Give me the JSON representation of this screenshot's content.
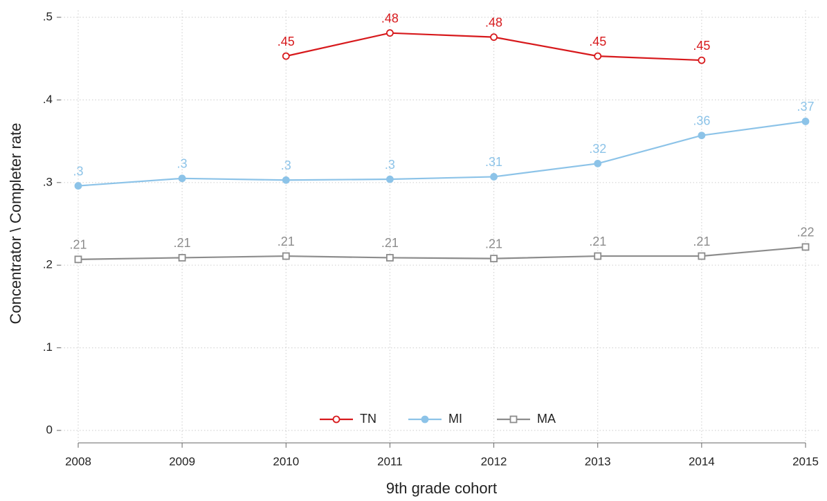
{
  "chart_data": {
    "type": "line",
    "xlabel": "9th grade cohort",
    "ylabel": "Concentrator \\ Completer rate",
    "x": [
      2008,
      2009,
      2010,
      2011,
      2012,
      2013,
      2014,
      2015
    ],
    "xlim": [
      2008,
      2015
    ],
    "xticks": [
      2008,
      2009,
      2010,
      2011,
      2012,
      2013,
      2014,
      2015
    ],
    "ylim": [
      0,
      0.5
    ],
    "yticks": [
      0,
      {
        "value": 0.1,
        "label": ".1"
      },
      {
        "value": 0.2,
        "label": ".2"
      },
      {
        "value": 0.3,
        "label": ".3"
      },
      {
        "value": 0.4,
        "label": ".4"
      },
      {
        "value": 0.5,
        "label": ".5"
      }
    ],
    "grid": true,
    "legend": "bottom",
    "series": [
      {
        "name": "TN",
        "color": "#d7191c",
        "marker": "hollow-circle",
        "values": [
          null,
          null,
          0.453,
          0.481,
          0.476,
          0.453,
          0.448,
          null
        ],
        "value_labels": [
          null,
          null,
          ".45",
          ".48",
          ".48",
          ".45",
          ".45",
          null
        ]
      },
      {
        "name": "MI",
        "color": "#8cc3e8",
        "marker": "circle",
        "values": [
          0.296,
          0.305,
          0.303,
          0.304,
          0.307,
          0.323,
          0.357,
          0.374
        ],
        "value_labels": [
          ".3",
          ".3",
          ".3",
          ".3",
          ".31",
          ".32",
          ".36",
          ".37"
        ]
      },
      {
        "name": "MA",
        "color": "#8c8c8c",
        "marker": "hollow-square",
        "values": [
          0.207,
          0.209,
          0.211,
          0.209,
          0.208,
          0.211,
          0.211,
          0.222
        ],
        "value_labels": [
          ".21",
          ".21",
          ".21",
          ".21",
          ".21",
          ".21",
          ".21",
          ".22"
        ]
      }
    ]
  }
}
